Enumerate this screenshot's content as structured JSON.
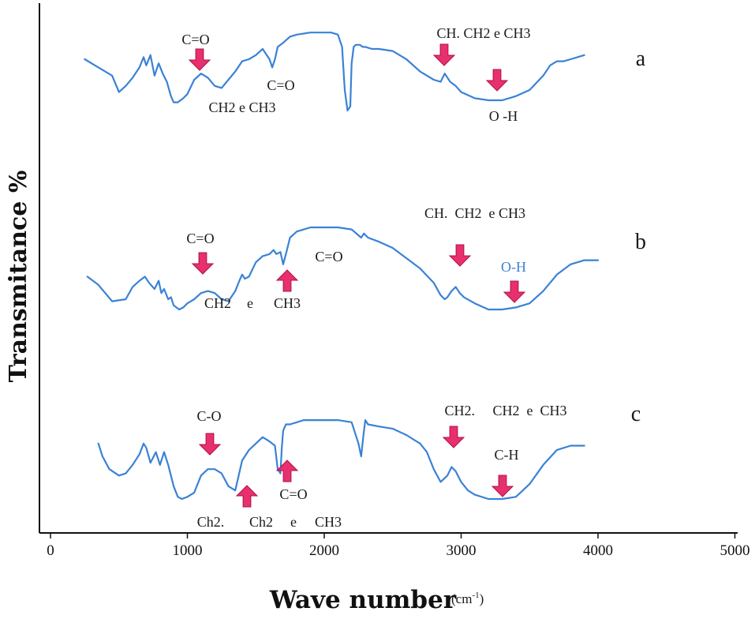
{
  "chart_data": {
    "type": "line",
    "xlabel": "Wave number",
    "xlabel_unit": "(cm-1)",
    "ylabel": "Transmitance %",
    "xlim": [
      0,
      5000
    ],
    "x_ticks": [
      "0",
      "1000",
      "2000",
      "3000",
      "4000",
      "5000"
    ],
    "series": [
      {
        "name": "a",
        "x": [
          250,
          350,
          450,
          500,
          550,
          600,
          650,
          680,
          700,
          730,
          760,
          790,
          820,
          850,
          880,
          900,
          930,
          970,
          1000,
          1050,
          1100,
          1150,
          1200,
          1250,
          1300,
          1350,
          1400,
          1450,
          1500,
          1550,
          1600,
          1620,
          1640,
          1660,
          1700,
          1750,
          1800,
          1900,
          2000,
          2050,
          2100,
          2130,
          2150,
          2170,
          2190,
          2200,
          2215,
          2230,
          2260,
          2280,
          2300,
          2350,
          2400,
          2500,
          2600,
          2700,
          2800,
          2850,
          2880,
          2920,
          2960,
          3000,
          3100,
          3200,
          3300,
          3400,
          3500,
          3600,
          3650,
          3700,
          3750,
          3800,
          3850,
          3900
        ],
        "y": [
          20,
          16,
          12,
          4,
          7,
          11,
          16,
          21,
          17,
          22,
          12,
          18,
          13,
          9,
          2,
          -1,
          -1,
          1,
          3,
          10,
          13,
          11,
          7,
          6,
          10,
          14,
          19,
          20,
          22,
          25,
          20,
          16,
          20,
          26,
          28,
          31,
          32,
          33,
          33,
          33,
          32,
          26,
          5,
          -5,
          -3,
          18,
          26,
          27,
          27,
          26,
          26,
          25,
          25,
          24,
          20,
          14,
          10,
          9,
          13,
          9,
          7,
          4,
          1,
          0,
          0,
          2,
          5,
          12,
          17,
          19,
          19,
          20,
          21,
          22
        ]
      },
      {
        "name": "b",
        "x": [
          270,
          350,
          450,
          550,
          600,
          650,
          690,
          720,
          760,
          790,
          810,
          830,
          860,
          880,
          900,
          940,
          970,
          1000,
          1050,
          1100,
          1150,
          1200,
          1250,
          1300,
          1350,
          1380,
          1400,
          1420,
          1450,
          1500,
          1550,
          1600,
          1630,
          1650,
          1680,
          1700,
          1720,
          1750,
          1800,
          1850,
          1900,
          2000,
          2100,
          2200,
          2270,
          2290,
          2320,
          2400,
          2500,
          2600,
          2700,
          2800,
          2850,
          2880,
          2900,
          2930,
          2960,
          2990,
          3020,
          3100,
          3200,
          3300,
          3400,
          3500,
          3600,
          3700,
          3800,
          3900,
          4000
        ],
        "y": [
          16,
          12,
          4,
          5,
          11,
          14,
          16,
          13,
          10,
          14,
          8,
          10,
          5,
          6,
          2,
          0,
          1,
          3,
          5,
          8,
          9,
          8,
          5,
          4,
          9,
          14,
          17,
          15,
          16,
          23,
          26,
          27,
          29,
          27,
          28,
          22,
          27,
          35,
          38,
          39,
          40,
          40,
          40,
          39,
          35,
          37,
          35,
          33,
          30,
          25,
          20,
          13,
          7,
          5,
          6,
          9,
          11,
          8,
          6,
          3,
          0,
          0,
          1,
          3,
          9,
          17,
          22,
          24,
          24
        ]
      },
      {
        "name": "c",
        "x": [
          350,
          380,
          430,
          500,
          550,
          600,
          650,
          680,
          700,
          730,
          770,
          800,
          830,
          860,
          900,
          930,
          960,
          1000,
          1050,
          1100,
          1150,
          1200,
          1250,
          1300,
          1350,
          1400,
          1450,
          1500,
          1550,
          1600,
          1640,
          1660,
          1680,
          1690,
          1700,
          1720,
          1750,
          1800,
          1850,
          1900,
          2000,
          2100,
          2200,
          2250,
          2270,
          2285,
          2300,
          2320,
          2400,
          2500,
          2600,
          2700,
          2750,
          2800,
          2850,
          2900,
          2930,
          2960,
          3000,
          3050,
          3100,
          3200,
          3300,
          3400,
          3500,
          3600,
          3700,
          3800,
          3900
        ],
        "y": [
          26,
          20,
          14,
          11,
          12,
          16,
          21,
          26,
          24,
          17,
          22,
          16,
          22,
          16,
          6,
          1,
          0,
          1,
          3,
          11,
          14,
          14,
          12,
          6,
          4,
          18,
          23,
          26,
          29,
          27,
          25,
          14,
          12,
          24,
          32,
          35,
          35,
          36,
          37,
          37,
          37,
          37,
          36,
          26,
          20,
          29,
          37,
          35,
          34,
          33,
          30,
          26,
          22,
          14,
          8,
          11,
          15,
          13,
          8,
          4,
          2,
          0,
          0,
          1,
          7,
          16,
          23,
          25,
          25
        ]
      }
    ],
    "panel_labels": [
      "a",
      "b",
      "c"
    ],
    "annotations": {
      "a": [
        "C=O",
        "CH2 e CH3",
        "C=O",
        "CH. CH2 e CH3",
        "O -H"
      ],
      "b": [
        "C=O",
        "CH2 e CH3",
        "C=O",
        "CH. CH2 e CH3",
        "O-H"
      ],
      "c": [
        "C-O",
        "Ch2. Ch2 e CH3",
        "C=O",
        "CH2. CH2 e CH3",
        "C-H"
      ]
    },
    "annotation_color_special": "#3a82d6",
    "colors": {
      "curve": "#3a82d6",
      "arrow": "#e8306e",
      "arrow_stroke": "#b01048",
      "axis": "#111111"
    }
  },
  "labels": {
    "a": {
      "co_top": "C=O",
      "ch2_ch3_part1": "CH2",
      "ch2_ch3_part2": "e",
      "ch2_ch3_part3": "CH3",
      "co_mid": "C=O",
      "ch_group": "CH. CH2 e CH3",
      "oh": "O -H"
    },
    "b": {
      "co_top": "C=O",
      "ch2": "CH2",
      "e": "e",
      "ch3": "CH3",
      "co_mid": "C=O",
      "ch_group": "CH.  CH2  e CH3",
      "oh": "O-H"
    },
    "c": {
      "co_top": "C-O",
      "ch2a": "Ch2.",
      "ch2b": "Ch2",
      "e": "e",
      "ch3": "CH3",
      "co_mid": "C=O",
      "ch_group": "CH2.     CH2  e  CH3",
      "ch": "C-H"
    }
  }
}
